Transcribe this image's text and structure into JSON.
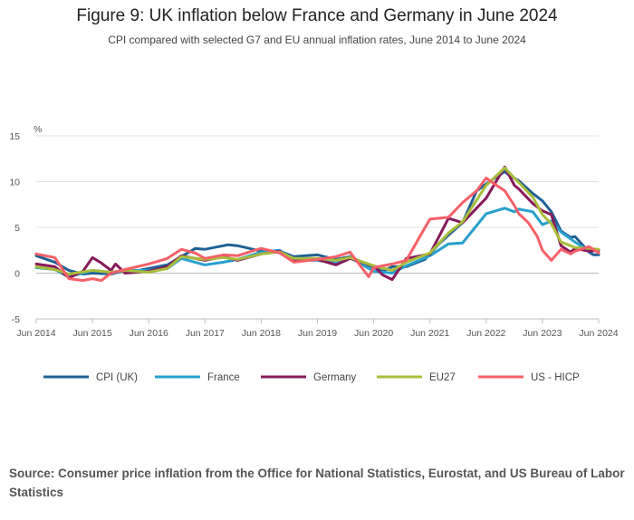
{
  "chart_data": {
    "type": "line",
    "title": "Figure 9: UK inflation below France and Germany in June 2024",
    "subtitle": "CPI compared with selected G7 and EU annual inflation rates, June 2014 to June 2024",
    "ylabel": "%",
    "xlabel": "",
    "ylim": [
      -5,
      15
    ],
    "yticks": [
      -5,
      0,
      5,
      10,
      15
    ],
    "xlim": [
      2014.42,
      2024.42
    ],
    "xticks": [
      {
        "value": 2014.42,
        "label": "Jun 2014"
      },
      {
        "value": 2015.42,
        "label": "Jun 2015"
      },
      {
        "value": 2016.42,
        "label": "Jun 2016"
      },
      {
        "value": 2017.42,
        "label": "Jun 2017"
      },
      {
        "value": 2018.42,
        "label": "Jun 2018"
      },
      {
        "value": 2019.42,
        "label": "Jun 2019"
      },
      {
        "value": 2020.42,
        "label": "Jun 2020"
      },
      {
        "value": 2021.42,
        "label": "Jun 2021"
      },
      {
        "value": 2022.42,
        "label": "Jun 2022"
      },
      {
        "value": 2023.42,
        "label": "Jun 2023"
      },
      {
        "value": 2024.42,
        "label": "Jun 2024"
      }
    ],
    "grid": true,
    "legend_position": "bottom",
    "series": [
      {
        "name": "CPI (UK)",
        "color": "#206095",
        "x": [
          2014.42,
          2014.75,
          2015.0,
          2015.25,
          2015.42,
          2015.75,
          2016.0,
          2016.25,
          2016.42,
          2016.75,
          2017.0,
          2017.25,
          2017.42,
          2017.75,
          2017.83,
          2018.0,
          2018.42,
          2018.75,
          2019.0,
          2019.42,
          2019.75,
          2020.0,
          2020.42,
          2020.58,
          2020.75,
          2021.0,
          2021.33,
          2021.58,
          2021.83,
          2022.0,
          2022.25,
          2022.5,
          2022.75,
          2022.83,
          2023.0,
          2023.25,
          2023.42,
          2023.58,
          2023.75,
          2023.92,
          2024.0,
          2024.25,
          2024.33,
          2024.42
        ],
        "y": [
          1.9,
          1.2,
          0.3,
          -0.1,
          0.0,
          -0.1,
          0.3,
          0.3,
          0.5,
          0.9,
          1.8,
          2.7,
          2.6,
          3.0,
          3.1,
          3.0,
          2.4,
          2.4,
          1.8,
          2.0,
          1.5,
          1.8,
          0.6,
          0.2,
          0.7,
          0.7,
          1.5,
          3.2,
          4.6,
          5.5,
          9.0,
          10.1,
          11.1,
          10.7,
          10.1,
          8.7,
          7.9,
          6.7,
          4.6,
          3.9,
          4.0,
          2.3,
          2.0,
          2.0
        ]
      },
      {
        "name": "France",
        "color": "#27a0cc",
        "x": [
          2014.42,
          2014.75,
          2015.0,
          2015.42,
          2015.75,
          2016.0,
          2016.42,
          2016.75,
          2017.0,
          2017.42,
          2017.75,
          2018.0,
          2018.42,
          2018.75,
          2019.0,
          2019.42,
          2019.75,
          2020.0,
          2020.42,
          2020.75,
          2021.0,
          2021.42,
          2021.75,
          2022.0,
          2022.42,
          2022.75,
          2022.92,
          2023.0,
          2023.25,
          2023.42,
          2023.58,
          2023.75,
          2024.0,
          2024.25,
          2024.42
        ],
        "y": [
          0.6,
          0.4,
          -0.4,
          0.3,
          0.1,
          0.3,
          0.3,
          0.5,
          1.6,
          0.9,
          1.2,
          1.5,
          2.3,
          2.5,
          1.4,
          1.4,
          1.1,
          1.7,
          0.2,
          0.0,
          0.8,
          1.9,
          3.2,
          3.3,
          6.5,
          7.1,
          6.7,
          7.0,
          6.7,
          5.3,
          5.7,
          4.5,
          3.4,
          2.4,
          2.5
        ]
      },
      {
        "name": "Germany",
        "color": "#871a5b",
        "x": [
          2014.42,
          2014.75,
          2015.0,
          2015.25,
          2015.42,
          2015.58,
          2015.75,
          2015.83,
          2016.0,
          2016.42,
          2016.75,
          2017.0,
          2017.42,
          2017.75,
          2018.0,
          2018.42,
          2018.75,
          2019.0,
          2019.42,
          2019.75,
          2020.0,
          2020.42,
          2020.58,
          2020.75,
          2021.0,
          2021.42,
          2021.75,
          2022.0,
          2022.42,
          2022.75,
          2022.92,
          2023.0,
          2023.25,
          2023.42,
          2023.58,
          2023.75,
          2023.92,
          2024.0,
          2024.25,
          2024.42
        ],
        "y": [
          1.0,
          0.7,
          -0.5,
          0.2,
          1.7,
          1.1,
          0.3,
          1.0,
          0.0,
          0.2,
          0.7,
          1.9,
          1.4,
          1.8,
          1.4,
          2.1,
          2.4,
          1.4,
          1.5,
          0.9,
          1.6,
          0.8,
          -0.2,
          -0.7,
          1.6,
          2.1,
          6.0,
          5.5,
          8.2,
          11.6,
          9.6,
          9.2,
          7.6,
          6.8,
          6.4,
          3.0,
          2.3,
          2.7,
          2.4,
          2.5
        ]
      },
      {
        "name": "EU27",
        "color": "#a8bd3a",
        "x": [
          2014.42,
          2014.75,
          2015.0,
          2015.42,
          2015.75,
          2016.0,
          2016.42,
          2016.75,
          2017.0,
          2017.42,
          2017.75,
          2018.0,
          2018.42,
          2018.75,
          2019.0,
          2019.42,
          2019.75,
          2020.0,
          2020.42,
          2020.75,
          2021.0,
          2021.42,
          2021.75,
          2022.0,
          2022.42,
          2022.75,
          2022.92,
          2023.0,
          2023.25,
          2023.42,
          2023.58,
          2023.75,
          2024.0,
          2024.25,
          2024.42
        ],
        "y": [
          0.7,
          0.4,
          -0.1,
          0.3,
          0.1,
          0.3,
          0.1,
          0.5,
          1.8,
          1.5,
          1.7,
          1.5,
          2.1,
          2.3,
          1.6,
          1.6,
          1.4,
          1.7,
          0.8,
          0.3,
          1.2,
          2.2,
          4.4,
          5.6,
          9.6,
          11.5,
          10.4,
          9.9,
          8.3,
          6.4,
          5.4,
          3.4,
          2.8,
          2.7,
          2.6
        ]
      },
      {
        "name": "US - HICP",
        "color": "#f66068",
        "x": [
          2014.42,
          2014.75,
          2015.0,
          2015.25,
          2015.42,
          2015.58,
          2015.75,
          2016.0,
          2016.42,
          2016.75,
          2017.0,
          2017.25,
          2017.42,
          2017.75,
          2018.0,
          2018.25,
          2018.42,
          2018.75,
          2019.0,
          2019.42,
          2019.75,
          2020.0,
          2020.33,
          2020.42,
          2020.75,
          2021.0,
          2021.25,
          2021.42,
          2021.75,
          2022.0,
          2022.25,
          2022.42,
          2022.58,
          2022.75,
          2022.92,
          2023.0,
          2023.17,
          2023.33,
          2023.42,
          2023.58,
          2023.75,
          2023.92,
          2024.0,
          2024.25,
          2024.42
        ],
        "y": [
          2.1,
          1.7,
          -0.6,
          -0.8,
          -0.6,
          -0.8,
          0.0,
          0.4,
          1.0,
          1.6,
          2.6,
          2.2,
          1.6,
          2.0,
          1.9,
          2.4,
          2.7,
          2.2,
          1.2,
          1.5,
          1.8,
          2.3,
          -0.4,
          0.6,
          1.0,
          1.4,
          4.1,
          5.9,
          6.1,
          7.7,
          9.0,
          10.4,
          9.7,
          9.0,
          7.4,
          6.5,
          5.5,
          4.0,
          2.5,
          1.4,
          2.6,
          2.1,
          2.4,
          2.9,
          2.2
        ]
      }
    ]
  },
  "source_text": "Source: Consumer price inflation from the Office for National Statistics, Eurostat, and US Bureau of Labor Statistics"
}
